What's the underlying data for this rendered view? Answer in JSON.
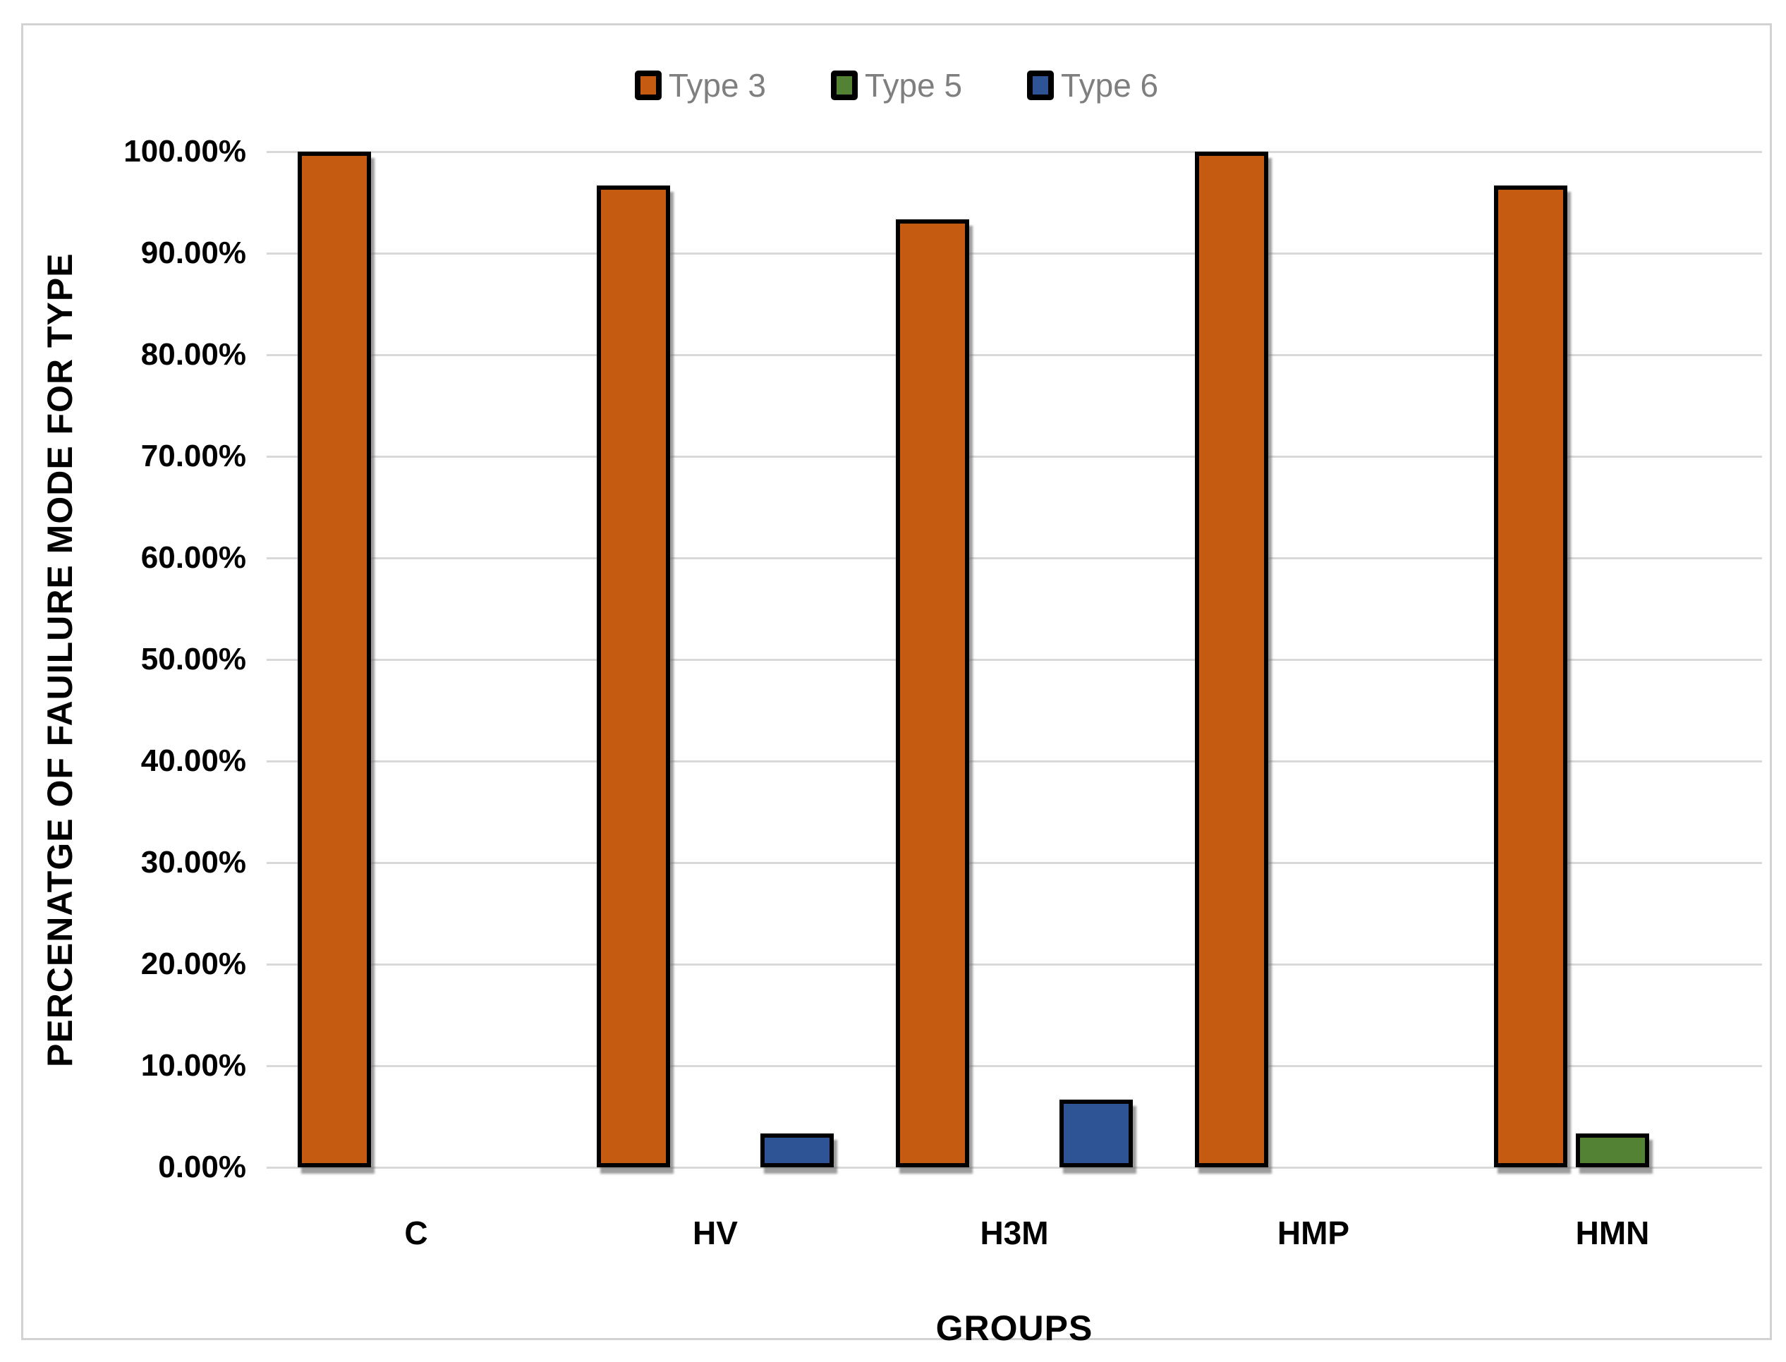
{
  "chart_data": {
    "type": "bar",
    "title": "",
    "xlabel": "GROUPS",
    "ylabel": "PERCENATGE OF FAUILURE MODE FOR TYPE",
    "categories": [
      "C",
      "HV",
      "H3M",
      "HMP",
      "HMN"
    ],
    "series": [
      {
        "name": "Type 3",
        "color": "#C55A11",
        "values": [
          100,
          96.67,
          93.33,
          100,
          96.67
        ]
      },
      {
        "name": "Type 5",
        "color": "#548235",
        "values": [
          0,
          0,
          0,
          0,
          3.33
        ]
      },
      {
        "name": "Type 6",
        "color": "#2F5496",
        "values": [
          0,
          3.33,
          6.67,
          0,
          0
        ]
      }
    ],
    "y_ticks": [
      "0.00%",
      "10.00%",
      "20.00%",
      "30.00%",
      "40.00%",
      "50.00%",
      "60.00%",
      "70.00%",
      "80.00%",
      "90.00%",
      "100.00%"
    ],
    "ylim": [
      0,
      100
    ],
    "y_step": 10,
    "grid": true,
    "legend_position": "top",
    "style": {
      "gridline_color": "#D9D9D9",
      "legend_text_color": "#7F7F7F",
      "bar_border_color": "#000000",
      "chart_border_color": "#D2D2D2",
      "axis_text_color": "#000000",
      "background_color": "#FFFFFF"
    }
  }
}
